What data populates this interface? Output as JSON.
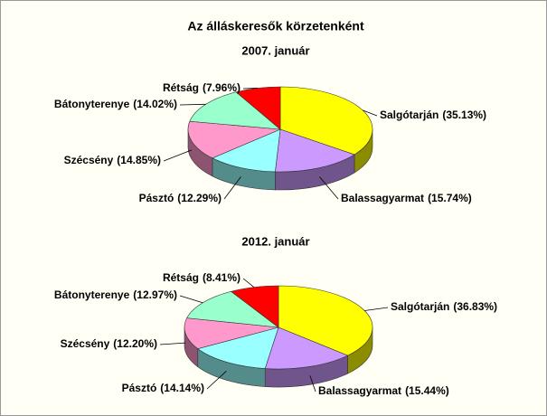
{
  "chart_data": [
    {
      "type": "pie",
      "title": "Az álláskeresők körzetenként",
      "subtitle": "2007. január",
      "categories": [
        "Salgótarján",
        "Balassagyarmat",
        "Pásztó",
        "Szécsény",
        "Bátonyterenye",
        "Rétság"
      ],
      "values": [
        35.13,
        15.74,
        12.29,
        14.85,
        14.02,
        7.96
      ],
      "value_labels": [
        "(35.13%)",
        "(15.74%)",
        "(12.29%)",
        "(14.85%)",
        "(14.02%)",
        "(7.96%)"
      ],
      "colors": [
        "#ffff00",
        "#cc99ff",
        "#99ffff",
        "#ff99cc",
        "#99ffcc",
        "#ff0000"
      ]
    },
    {
      "type": "pie",
      "subtitle": "2012. január",
      "categories": [
        "Salgótarján",
        "Balassagyarmat",
        "Pásztó",
        "Szécsény",
        "Bátonyterenye",
        "Rétság"
      ],
      "values": [
        36.83,
        15.44,
        14.14,
        12.2,
        12.97,
        8.41
      ],
      "value_labels": [
        "(36.83%)",
        "(15.44%)",
        "(14.14%)",
        "(12.20%)",
        "(12.97%)",
        "(8.41%)"
      ],
      "colors": [
        "#ffff00",
        "#cc99ff",
        "#99ffff",
        "#ff99cc",
        "#99ffcc",
        "#ff0000"
      ]
    }
  ]
}
